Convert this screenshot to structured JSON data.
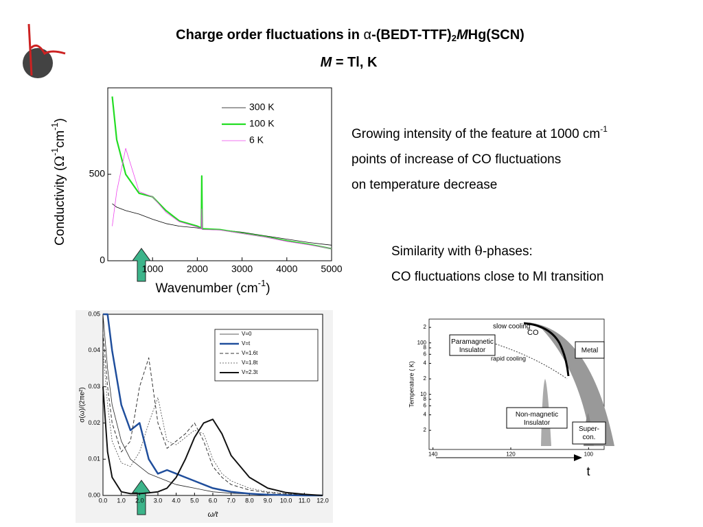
{
  "header": {
    "title_parts": [
      "Charge order fluctuations  in ",
      "α",
      "-(BEDT-TTF)",
      "2",
      "M",
      "Hg(SCN)"
    ],
    "subtitle_parts": [
      "M",
      " = Tl, K"
    ]
  },
  "notes": {
    "line1": [
      "Growing intensity of the feature at 1000 cm",
      "-1"
    ],
    "line2": "points of increase of CO fluctuations",
    "line3": "on temperature decrease",
    "line4": [
      "Similarity with ",
      "θ",
      "-phases:"
    ],
    "line5": "CO fluctuations close to MI transition"
  },
  "chart_data": [
    {
      "type": "line",
      "ylabel_parts": [
        "Conductivity (",
        "Ω",
        "-1",
        "cm",
        "-1",
        ")"
      ],
      "xlabel_parts": [
        "Wavenumber (cm",
        "-1",
        ")"
      ],
      "x": [
        100,
        200,
        400,
        700,
        1000,
        1300,
        1600,
        2000,
        2090,
        2100,
        2110,
        2500,
        3000,
        3500,
        4000,
        4500,
        5000
      ],
      "series": [
        {
          "name": "300 K",
          "color": "#000000",
          "width": 0.8,
          "values": [
            330,
            310,
            290,
            270,
            240,
            215,
            200,
            190,
            185,
            185,
            184,
            180,
            165,
            145,
            125,
            105,
            90
          ]
        },
        {
          "name": "100 K",
          "color": "#22dd22",
          "width": 2.2,
          "values": [
            950,
            700,
            500,
            390,
            370,
            290,
            230,
            200,
            190,
            490,
            185,
            180,
            160,
            140,
            115,
            95,
            70
          ]
        },
        {
          "name": "6 K",
          "color": "#ee44ee",
          "width": 0.8,
          "values": [
            200,
            400,
            650,
            400,
            370,
            280,
            225,
            195,
            185,
            300,
            180,
            178,
            158,
            138,
            112,
            92,
            70
          ]
        }
      ],
      "xlim": [
        0,
        5000
      ],
      "xticks": [
        1000,
        2000,
        3000,
        4000,
        5000
      ],
      "ylim": [
        0,
        1000
      ],
      "yticks": [
        0,
        500
      ]
    },
    {
      "type": "line",
      "ylabel": "σ(ω)/(2πe²)",
      "xlabel": "ω/t",
      "x": [
        0,
        0.25,
        0.5,
        1,
        1.5,
        2,
        2.5,
        3,
        3.5,
        4,
        4.5,
        5,
        5.5,
        6,
        6.5,
        7,
        8,
        9,
        10,
        11,
        12
      ],
      "series": [
        {
          "name": "V=0",
          "color": "#222222",
          "width": 0.8,
          "dash": "none",
          "values": [
            0.05,
            0.035,
            0.025,
            0.015,
            0.01,
            0.008,
            0.006,
            0.005,
            0.004,
            0.003,
            0.0025,
            0.002,
            0.0015,
            0.001,
            0.0008,
            0.0006,
            0.0004,
            0.0002,
            0.0001,
            0,
            0
          ]
        },
        {
          "name": "V=t",
          "color": "#1f4e9c",
          "width": 2.5,
          "dash": "none",
          "values": [
            0.05,
            0.05,
            0.04,
            0.025,
            0.018,
            0.02,
            0.01,
            0.006,
            0.007,
            0.006,
            0.005,
            0.004,
            0.003,
            0.002,
            0.0015,
            0.001,
            0.0005,
            0.0002,
            0.0001,
            0,
            0
          ]
        },
        {
          "name": "V=1.6t",
          "color": "#333333",
          "width": 1,
          "dash": "5,3",
          "values": [
            0.045,
            0.03,
            0.02,
            0.012,
            0.015,
            0.03,
            0.038,
            0.02,
            0.013,
            0.015,
            0.017,
            0.02,
            0.015,
            0.008,
            0.005,
            0.003,
            0.0015,
            0.0008,
            0.0004,
            0.0002,
            0
          ]
        },
        {
          "name": "V=1.8t",
          "color": "#444444",
          "width": 0.8,
          "dash": "2,2",
          "values": [
            0.04,
            0.025,
            0.015,
            0.009,
            0.008,
            0.012,
            0.02,
            0.027,
            0.015,
            0.014,
            0.016,
            0.018,
            0.017,
            0.01,
            0.006,
            0.004,
            0.002,
            0.001,
            0.0005,
            0.0002,
            0
          ]
        },
        {
          "name": "V=2.3t",
          "color": "#111111",
          "width": 2,
          "dash": "none",
          "values": [
            0.03,
            0.012,
            0.005,
            0.001,
            0.0005,
            0.0005,
            0.0007,
            0.001,
            0.002,
            0.005,
            0.01,
            0.016,
            0.02,
            0.021,
            0.017,
            0.011,
            0.005,
            0.002,
            0.0008,
            0.0003,
            0
          ]
        }
      ],
      "xlim": [
        0,
        12
      ],
      "xticks": [
        {
          "value": 0,
          "label": "0.0"
        },
        {
          "value": 1,
          "label": "1.0"
        },
        {
          "value": 2,
          "label": "2.0"
        },
        {
          "value": 3,
          "label": "3.0"
        },
        {
          "value": 4,
          "label": "4.0"
        },
        {
          "value": 5,
          "label": "5.0"
        },
        {
          "value": 6,
          "label": "6.0"
        },
        {
          "value": 7,
          "label": "7.0"
        },
        {
          "value": 8,
          "label": "8.0"
        },
        {
          "value": 9,
          "label": "9.0"
        },
        {
          "value": 10,
          "label": "10.0"
        },
        {
          "value": 11,
          "label": "11.0"
        },
        {
          "value": 12,
          "label": "12.0"
        }
      ],
      "ylim": [
        0,
        0.05
      ],
      "yticks": [
        {
          "value": 0,
          "label": "0.00"
        },
        {
          "value": 0.01,
          "label": "0.01"
        },
        {
          "value": 0.02,
          "label": "0.02"
        },
        {
          "value": 0.03,
          "label": "0.03"
        },
        {
          "value": 0.04,
          "label": "0.04"
        },
        {
          "value": 0.05,
          "label": "0.05"
        }
      ]
    },
    {
      "type": "phase",
      "ylabel": "Temperature ( K)",
      "xlabel": "t",
      "ylog": true,
      "regions": [
        "slow cooling",
        "CO",
        "Paramagnetic Insulator",
        "rapid cooling",
        "Metal",
        "Non-magnetic Insulator",
        "Super-con."
      ],
      "xlim": [
        141,
        96
      ],
      "xticks": [
        140,
        120,
        100
      ],
      "ylim": [
        0.85,
        290
      ],
      "yticks": [
        {
          "value": 2,
          "label": "2"
        },
        {
          "value": 4,
          "label": "4"
        },
        {
          "value": 6,
          "label": "6"
        },
        {
          "value": 8,
          "label": "8"
        },
        10,
        {
          "value": 20,
          "label": "2"
        },
        {
          "value": 40,
          "label": "4"
        },
        {
          "value": 60,
          "label": "6"
        },
        {
          "value": 80,
          "label": "8"
        },
        100,
        {
          "value": 200,
          "label": "2"
        }
      ]
    }
  ]
}
